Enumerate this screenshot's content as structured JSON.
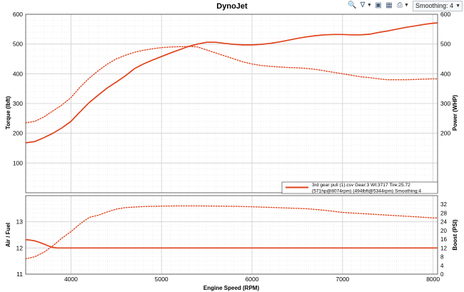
{
  "app": {
    "title": "DynoJet"
  },
  "toolbar": {
    "smoothing_label": "Smoothing: 4",
    "icons": [
      "zoom-icon",
      "filter-icon",
      "open-icon",
      "save-icon",
      "print-icon"
    ]
  },
  "colors": {
    "trace": "#e0421b",
    "grid": "#cfcfcf",
    "grid_minor": "#d8d8d8"
  },
  "chart_data": [
    {
      "type": "line",
      "title": "DynoJet",
      "xlabel": "Engine Speed (RPM)",
      "ylabel": "Torque (lbft)",
      "y2label": "Power (WHP)",
      "xlim": [
        3500,
        8050
      ],
      "ylim": [
        0,
        600
      ],
      "y2lim": [
        0,
        600
      ],
      "x_ticks": [
        4000,
        5000,
        6000,
        7000,
        8000
      ],
      "y_ticks": [
        100,
        200,
        300,
        400,
        500,
        600
      ],
      "y2_ticks": [
        200,
        300,
        400,
        500,
        600
      ],
      "grid": true,
      "legend": {
        "position": "bottom-right",
        "lines": [
          "3rd gear pull (1).csv Gear:3 Wt:3717 Tire:25.72",
          "(571hp@8074rpm) (494lbft@5344rpm) Smoothing:4"
        ]
      },
      "series": [
        {
          "axis": "left",
          "style": "dotted",
          "points": [
            [
              3500,
              235
            ],
            [
              3600,
              240
            ],
            [
              3700,
              255
            ],
            [
              3800,
              275
            ],
            [
              3900,
              295
            ],
            [
              4000,
              320
            ],
            [
              4100,
              355
            ],
            [
              4200,
              385
            ],
            [
              4300,
              410
            ],
            [
              4400,
              432
            ],
            [
              4500,
              450
            ],
            [
              4600,
              462
            ],
            [
              4700,
              472
            ],
            [
              4800,
              479
            ],
            [
              4900,
              484
            ],
            [
              5000,
              488
            ],
            [
              5100,
              490
            ],
            [
              5200,
              491
            ],
            [
              5300,
              492
            ],
            [
              5400,
              490
            ],
            [
              5500,
              480
            ],
            [
              5600,
              470
            ],
            [
              5700,
              460
            ],
            [
              5800,
              450
            ],
            [
              5900,
              440
            ],
            [
              6000,
              433
            ],
            [
              6100,
              428
            ],
            [
              6200,
              425
            ],
            [
              6300,
              423
            ],
            [
              6400,
              421
            ],
            [
              6500,
              420
            ],
            [
              6600,
              418
            ],
            [
              6700,
              415
            ],
            [
              6800,
              410
            ],
            [
              6900,
              405
            ],
            [
              7000,
              400
            ],
            [
              7100,
              395
            ],
            [
              7200,
              390
            ],
            [
              7300,
              387
            ],
            [
              7400,
              383
            ],
            [
              7500,
              380
            ],
            [
              7600,
              380
            ],
            [
              7700,
              380
            ],
            [
              7800,
              381
            ],
            [
              7900,
              382
            ],
            [
              8000,
              383
            ],
            [
              8050,
              383
            ]
          ]
        },
        {
          "axis": "right",
          "style": "solid",
          "points": [
            [
              3500,
              168
            ],
            [
              3600,
              172
            ],
            [
              3700,
              185
            ],
            [
              3800,
              200
            ],
            [
              3900,
              218
            ],
            [
              4000,
              240
            ],
            [
              4100,
              272
            ],
            [
              4200,
              303
            ],
            [
              4300,
              328
            ],
            [
              4400,
              352
            ],
            [
              4500,
              372
            ],
            [
              4600,
              393
            ],
            [
              4700,
              417
            ],
            [
              4800,
              433
            ],
            [
              4900,
              446
            ],
            [
              5000,
              458
            ],
            [
              5100,
              470
            ],
            [
              5200,
              481
            ],
            [
              5300,
              492
            ],
            [
              5400,
              500
            ],
            [
              5500,
              506
            ],
            [
              5600,
              506
            ],
            [
              5700,
              502
            ],
            [
              5800,
              499
            ],
            [
              5900,
              497
            ],
            [
              6000,
              497
            ],
            [
              6100,
              499
            ],
            [
              6200,
              502
            ],
            [
              6300,
              507
            ],
            [
              6400,
              513
            ],
            [
              6500,
              519
            ],
            [
              6600,
              524
            ],
            [
              6700,
              528
            ],
            [
              6800,
              531
            ],
            [
              6900,
              532
            ],
            [
              7000,
              532
            ],
            [
              7100,
              531
            ],
            [
              7200,
              531
            ],
            [
              7300,
              533
            ],
            [
              7400,
              539
            ],
            [
              7500,
              544
            ],
            [
              7600,
              550
            ],
            [
              7700,
              556
            ],
            [
              7800,
              561
            ],
            [
              7900,
              566
            ],
            [
              8000,
              570
            ],
            [
              8050,
              571
            ]
          ]
        }
      ]
    },
    {
      "type": "line",
      "xlabel": "Engine Speed (RPM)",
      "ylabel": "Air / Fuel",
      "y2label": "Boost (PSI)",
      "xlim": [
        3500,
        8050
      ],
      "ylim": [
        11,
        14
      ],
      "y2lim": [
        0,
        36
      ],
      "x_ticks": [
        4000,
        5000,
        6000,
        7000,
        8000
      ],
      "y_ticks": [
        11,
        12,
        13
      ],
      "y2_ticks": [
        0,
        4,
        8,
        12,
        16,
        20,
        24,
        28,
        32
      ],
      "grid": true,
      "series": [
        {
          "axis": "left",
          "style": "solid",
          "points": [
            [
              3500,
              12.32
            ],
            [
              3550,
              12.3
            ],
            [
              3600,
              12.27
            ],
            [
              3650,
              12.22
            ],
            [
              3700,
              12.15
            ],
            [
              3750,
              12.08
            ],
            [
              3800,
              12.02
            ],
            [
              3850,
              12.0
            ],
            [
              3900,
              12.0
            ],
            [
              8050,
              12.0
            ]
          ]
        },
        {
          "axis": "right",
          "style": "dotted",
          "points": [
            [
              3500,
              7
            ],
            [
              3600,
              8
            ],
            [
              3700,
              10
            ],
            [
              3800,
              13
            ],
            [
              3900,
              16.5
            ],
            [
              4000,
              19.5
            ],
            [
              4100,
              23
            ],
            [
              4200,
              26
            ],
            [
              4300,
              27
            ],
            [
              4400,
              28.5
            ],
            [
              4500,
              29.8
            ],
            [
              4600,
              30.5
            ],
            [
              4800,
              31
            ],
            [
              5000,
              31.2
            ],
            [
              5200,
              31.3
            ],
            [
              5400,
              31.3
            ],
            [
              5600,
              31.2
            ],
            [
              5800,
              31.1
            ],
            [
              6000,
              30.9
            ],
            [
              6200,
              30.6
            ],
            [
              6400,
              30.3
            ],
            [
              6600,
              30
            ],
            [
              6800,
              29.3
            ],
            [
              7000,
              28.3
            ],
            [
              7200,
              27.8
            ],
            [
              7400,
              27.3
            ],
            [
              7600,
              26.8
            ],
            [
              7800,
              26.3
            ],
            [
              8000,
              25.8
            ],
            [
              8050,
              25.8
            ]
          ]
        }
      ]
    }
  ]
}
